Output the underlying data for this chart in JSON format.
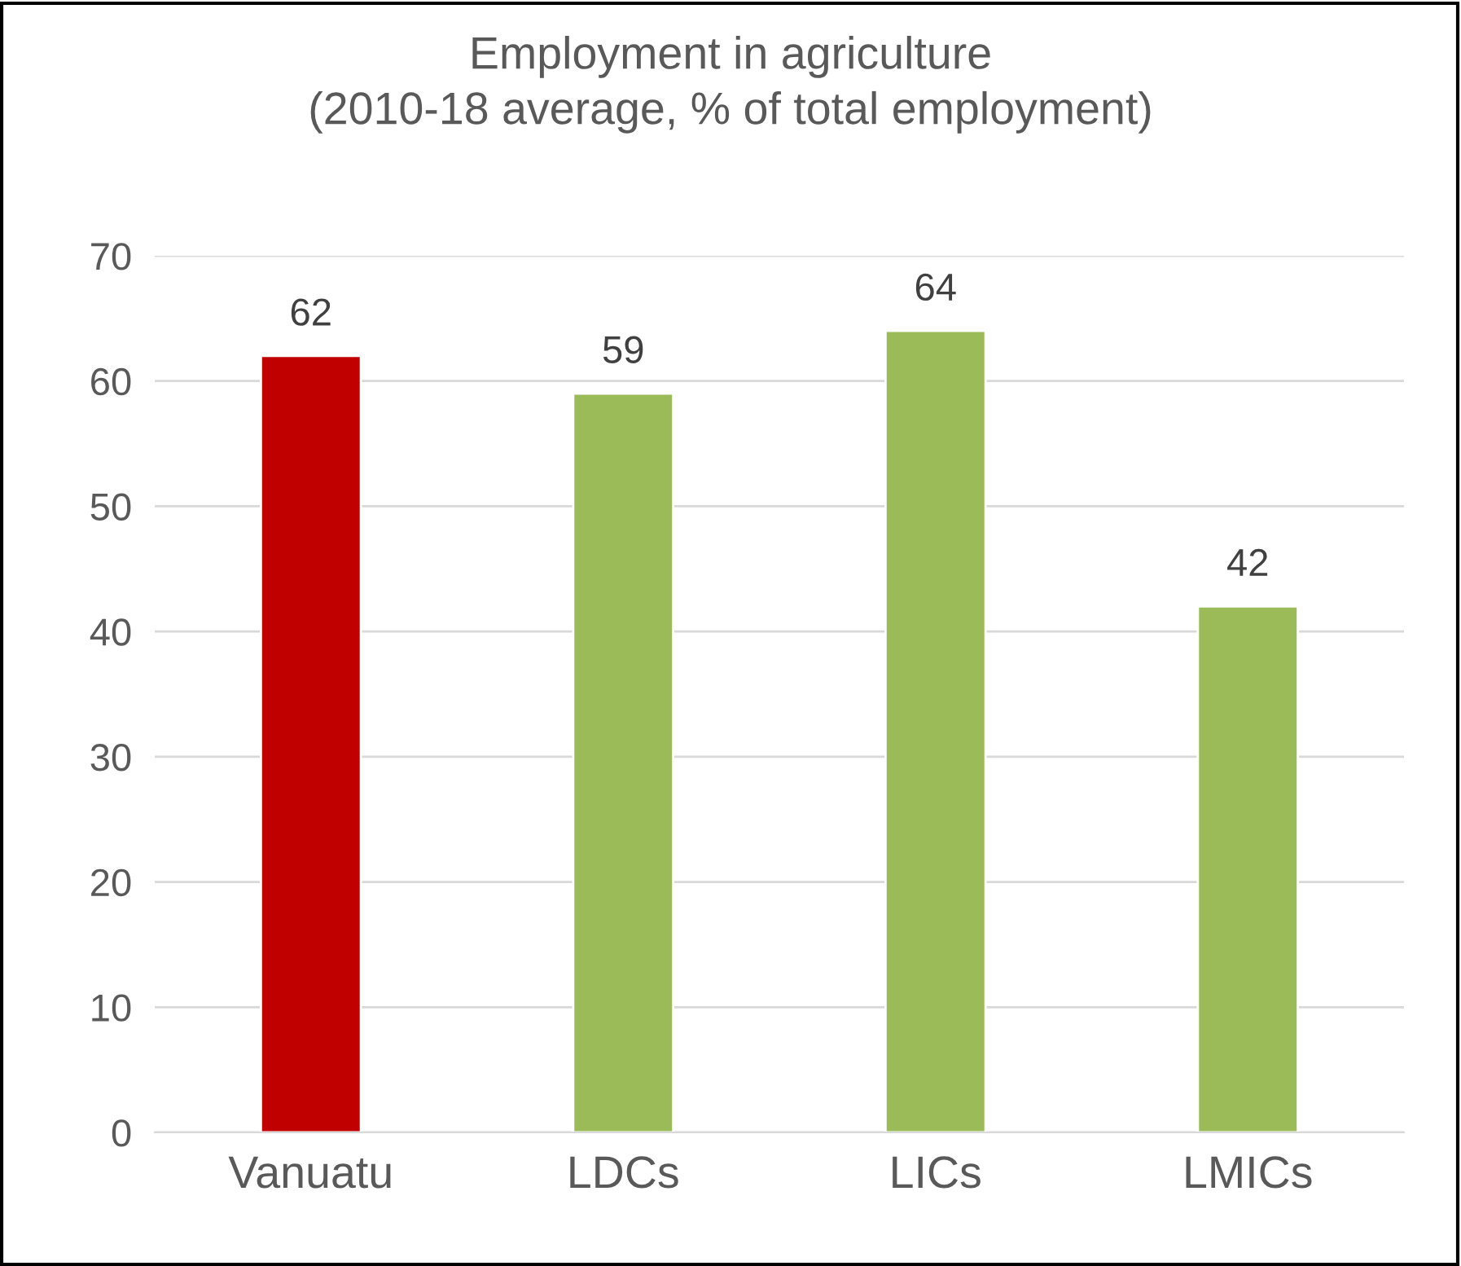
{
  "chart_data": {
    "type": "bar",
    "title": "Employment in agriculture\n(2010-18 average, % of total employment)",
    "categories": [
      "Vanuatu",
      "LDCs",
      "LICs",
      "LMICs"
    ],
    "values": [
      62,
      59,
      64,
      42
    ],
    "colors": [
      "#c00000",
      "#9bbb59",
      "#9bbb59",
      "#9bbb59"
    ],
    "ylim": [
      0,
      70
    ],
    "yticks": [
      0,
      10,
      20,
      30,
      40,
      50,
      60,
      70
    ],
    "grid": "y",
    "data_labels": true
  }
}
